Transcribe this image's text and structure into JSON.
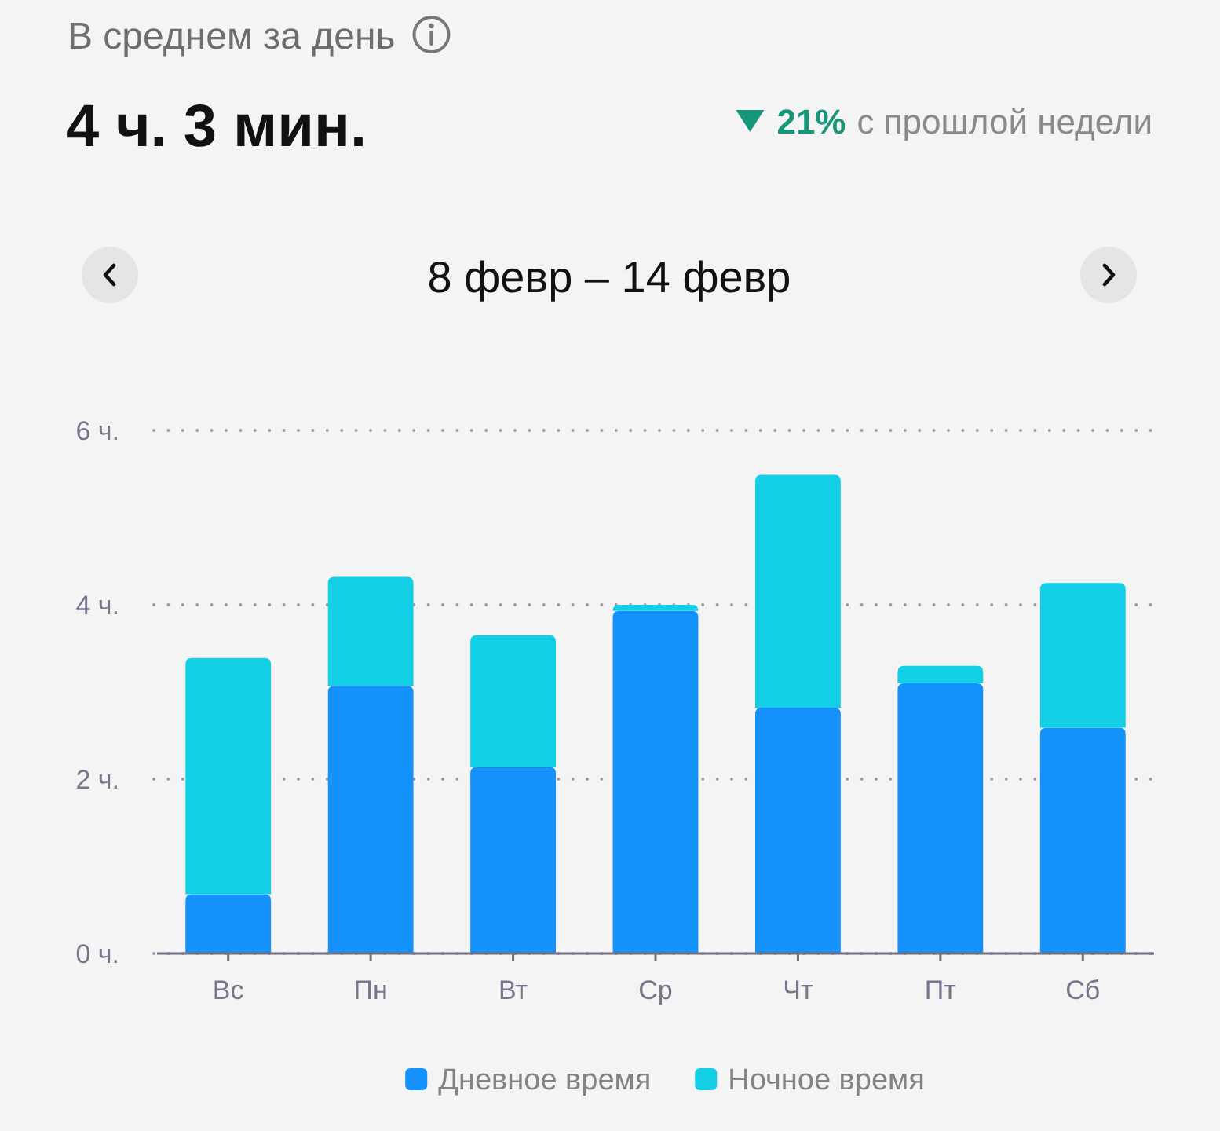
{
  "chart_data": {
    "type": "bar",
    "title": "В среднем за день",
    "subtitle": "4 ч. 3 мин.",
    "annotations": [
      "21%",
      "с прошлой недели",
      "8 февр – 14 февр"
    ],
    "categories": [
      "Вс",
      "Пн",
      "Вт",
      "Ср",
      "Чт",
      "Пт",
      "Сб"
    ],
    "series": [
      {
        "name": "Дневное время",
        "color": "#1491fb",
        "values": [
          0.68,
          3.07,
          2.14,
          3.93,
          2.82,
          3.1,
          2.59
        ]
      },
      {
        "name": "Ночное время",
        "color": "#13cfe6",
        "values": [
          2.71,
          1.25,
          1.51,
          0.07,
          2.67,
          0.2,
          1.66
        ]
      }
    ],
    "stacked": true,
    "ylim": [
      0,
      6
    ],
    "yticks": [
      {
        "value": 0,
        "label": "0 ч."
      },
      {
        "value": 2,
        "label": "2 ч."
      },
      {
        "value": 4,
        "label": "4 ч."
      },
      {
        "value": 6,
        "label": "6 ч."
      }
    ],
    "grid": "y",
    "legend": "bottom"
  }
}
